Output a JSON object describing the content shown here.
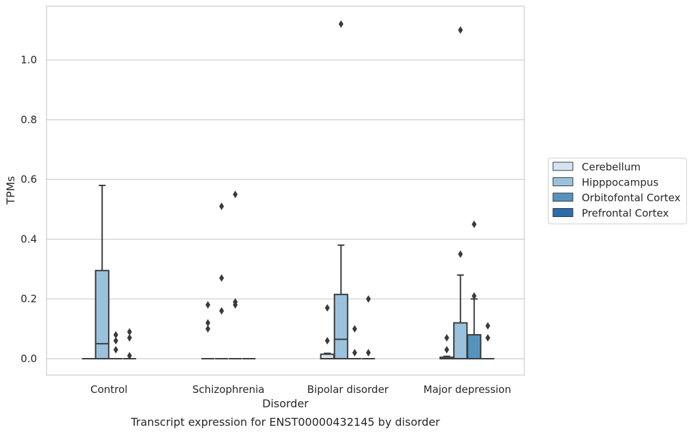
{
  "chart_data": {
    "type": "box",
    "caption": "Transcript expression for ENST00000432145 by disorder",
    "xlabel": "Disorder",
    "ylabel": "TPMs",
    "ylim": [
      -0.055,
      1.18
    ],
    "yticks": [
      0.0,
      0.2,
      0.4,
      0.6,
      0.8,
      1.0
    ],
    "ytick_labels": [
      "0.0",
      "0.2",
      "0.4",
      "0.6",
      "0.8",
      "1.0"
    ],
    "grid": "horizontal",
    "legend_position": "right",
    "categories": [
      "Control",
      "Schizophrenia",
      "Bipolar disorder",
      "Major depression"
    ],
    "series": [
      {
        "name": "Cerebellum",
        "color": "#d4e4f2",
        "boxes": [
          {
            "q1": 0,
            "median": 0,
            "q3": 0,
            "whislo": 0,
            "whishi": 0,
            "fliers": []
          },
          {
            "q1": 0,
            "median": 0,
            "q3": 0,
            "whislo": 0,
            "whishi": 0,
            "fliers": [
              0.1,
              0.12,
              0.18
            ]
          },
          {
            "q1": 0,
            "median": 0,
            "q3": 0.015,
            "whislo": 0,
            "whishi": 0.018,
            "fliers": [
              0.06,
              0.17
            ]
          },
          {
            "q1": 0,
            "median": 0,
            "q3": 0.005,
            "whislo": 0,
            "whishi": 0.008,
            "fliers": [
              0.03,
              0.07
            ]
          }
        ]
      },
      {
        "name": "Hipppocampus",
        "color": "#9ac2dc",
        "boxes": [
          {
            "q1": 0,
            "median": 0.05,
            "q3": 0.295,
            "whislo": 0,
            "whishi": 0.58,
            "fliers": []
          },
          {
            "q1": 0,
            "median": 0,
            "q3": 0,
            "whislo": 0,
            "whishi": 0,
            "fliers": [
              0.16,
              0.27,
              0.51
            ]
          },
          {
            "q1": 0,
            "median": 0.065,
            "q3": 0.215,
            "whislo": 0,
            "whishi": 0.38,
            "fliers": [
              1.12
            ]
          },
          {
            "q1": 0,
            "median": 0,
            "q3": 0.12,
            "whislo": 0,
            "whishi": 0.28,
            "fliers": [
              0.35,
              1.1
            ]
          }
        ]
      },
      {
        "name": "Orbitofontal Cortex",
        "color": "#5593bf",
        "boxes": [
          {
            "q1": 0,
            "median": 0,
            "q3": 0,
            "whislo": 0,
            "whishi": 0,
            "fliers": [
              0.03,
              0.06,
              0.08
            ]
          },
          {
            "q1": 0,
            "median": 0,
            "q3": 0,
            "whislo": 0,
            "whishi": 0,
            "fliers": [
              0.18,
              0.19,
              0.55
            ]
          },
          {
            "q1": 0,
            "median": 0,
            "q3": 0,
            "whislo": 0,
            "whishi": 0,
            "fliers": [
              0.02,
              0.1
            ]
          },
          {
            "q1": 0,
            "median": 0,
            "q3": 0.08,
            "whislo": 0,
            "whishi": 0.2,
            "fliers": [
              0.21,
              0.45
            ]
          }
        ]
      },
      {
        "name": "Prefrontal Cortex",
        "color": "#2b6cad",
        "boxes": [
          {
            "q1": 0,
            "median": 0,
            "q3": 0,
            "whislo": 0,
            "whishi": 0,
            "fliers": [
              0.01,
              0.07,
              0.09
            ]
          },
          {
            "q1": 0,
            "median": 0,
            "q3": 0,
            "whislo": 0,
            "whishi": 0,
            "fliers": []
          },
          {
            "q1": 0,
            "median": 0,
            "q3": 0,
            "whislo": 0,
            "whishi": 0,
            "fliers": [
              0.02,
              0.2
            ]
          },
          {
            "q1": 0,
            "median": 0,
            "q3": 0,
            "whislo": 0,
            "whishi": 0,
            "fliers": [
              0.07,
              0.11
            ]
          }
        ]
      }
    ]
  }
}
